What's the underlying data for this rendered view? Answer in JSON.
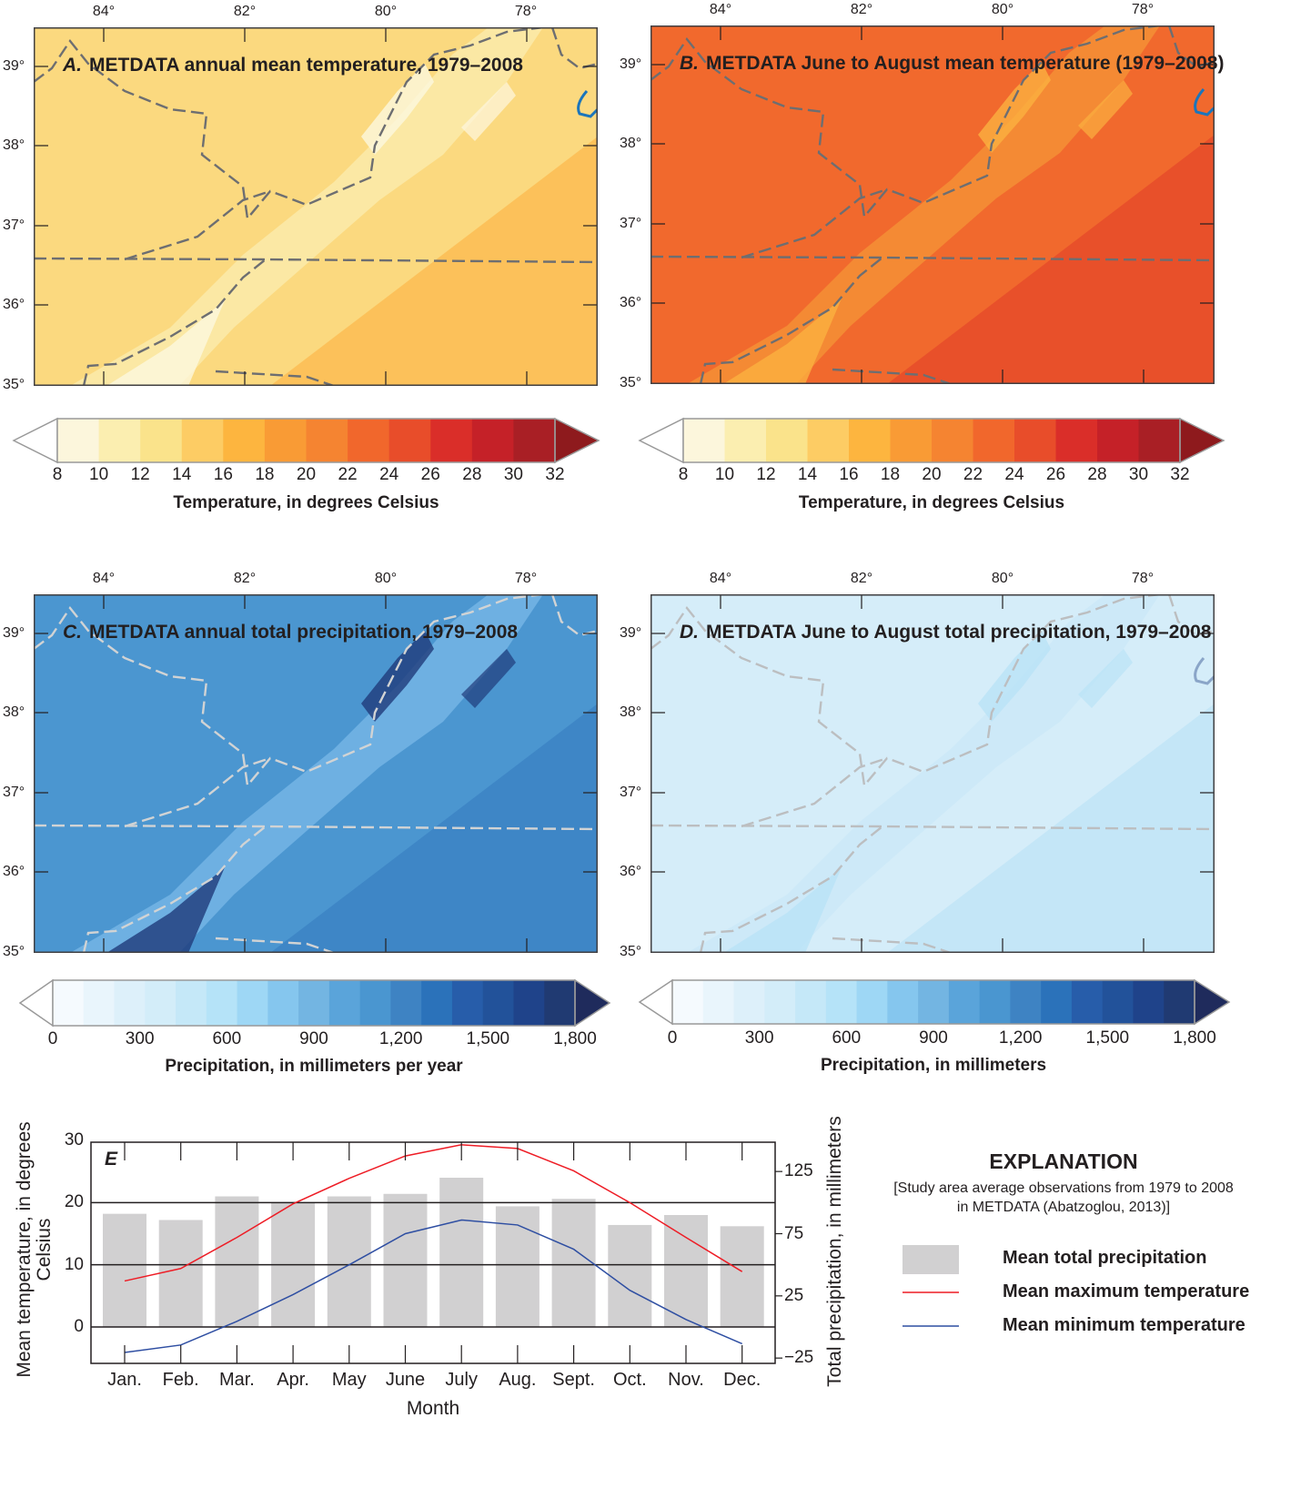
{
  "maps": [
    {
      "letter": "A.",
      "title": "METDATA annual mean temperature, 1979–2008",
      "palette": {
        "base": "#fbd97f",
        "ridge": "#fbe8a4",
        "peak": "#fdf7df",
        "low": "#fcc15a"
      }
    },
    {
      "letter": "B.",
      "title": "METDATA June to August mean temperature (1979–2008)",
      "palette": {
        "base": "#f1692d",
        "ridge": "#f48a34",
        "peak": "#fbb040",
        "low": "#e8502a"
      }
    },
    {
      "letter": "C.",
      "title": "METDATA annual total precipitation, 1979–2008",
      "palette": {
        "base": "#4b96d0",
        "ridge": "#6eb0e2",
        "peak": "#1f3b7a",
        "low": "#3e86c6"
      }
    },
    {
      "letter": "D.",
      "title": "METDATA June to August total precipitation, 1979–2008",
      "palette": {
        "base": "#d5edf9",
        "ridge": "#cde9f8",
        "peak": "#b9e2f6",
        "low": "#c4e6f7"
      }
    }
  ],
  "lon_labels": [
    "84°",
    "82°",
    "80°",
    "78°"
  ],
  "lat_labels": [
    "39°",
    "38°",
    "37°",
    "36°",
    "35°"
  ],
  "temp_colorbar": {
    "ticks": [
      "8",
      "10",
      "12",
      "14",
      "16",
      "18",
      "20",
      "22",
      "24",
      "26",
      "28",
      "30",
      "32"
    ],
    "title": "Temperature, in degrees Celsius",
    "colors": [
      "#fcf6dc",
      "#fbeeb0",
      "#fae38b",
      "#fdcc64",
      "#fdb53f",
      "#f99b35",
      "#f58431",
      "#f1672c",
      "#e84d2a",
      "#da2e29",
      "#c52128",
      "#a91f25",
      "#8e1a1d"
    ]
  },
  "precip_colorbars": [
    {
      "title": "Precipitation, in millimeters per year"
    },
    {
      "title": "Precipitation, in millimeters"
    }
  ],
  "precip_colorbar": {
    "ticks": [
      "0",
      "300",
      "600",
      "900",
      "1,200",
      "1,500",
      "1,800"
    ],
    "colors": [
      "#f5fafe",
      "#e9f5fc",
      "#ddf0fa",
      "#d3edf9",
      "#c5e8f8",
      "#b5e3f8",
      "#9ed7f5",
      "#85c6ee",
      "#73b5e2",
      "#5aa4da",
      "#4a96d0",
      "#3e83c3",
      "#2b72ba",
      "#275daa",
      "#22529a",
      "#1f438a",
      "#203a72",
      "#1f2b5c"
    ]
  },
  "chart_data": {
    "type": "bar",
    "panel_label": "E",
    "categories": [
      "Jan.",
      "Feb.",
      "Mar.",
      "Apr.",
      "May",
      "June",
      "July",
      "Aug.",
      "Sept.",
      "Oct.",
      "Nov.",
      "Dec."
    ],
    "xlabel": "Month",
    "ylabel_left": "Mean temperature, in degrees Celsius",
    "ylabel_right": "Total precipitation, in millimeters",
    "ylim_left": [
      -5,
      30
    ],
    "yticks_left": [
      "0",
      "10",
      "20",
      "30"
    ],
    "ylim_right": [
      -25,
      150
    ],
    "yticks_right": [
      "−25",
      "25",
      "75",
      "125"
    ],
    "grid": "horizontal at 0, 10, 20",
    "series": [
      {
        "name": "Mean total precipitation",
        "type": "bar",
        "axis": "right",
        "color": "#d1d0d1",
        "values": [
          91,
          86,
          105,
          100,
          105,
          107,
          120,
          97,
          103,
          82,
          90,
          81
        ]
      },
      {
        "name": "Mean maximum temperature",
        "type": "line",
        "axis": "left",
        "color": "#ee1c25",
        "values": [
          7.4,
          9.4,
          14.4,
          19.8,
          23.9,
          27.5,
          29.3,
          28.7,
          25.1,
          20,
          14.4,
          8.9
        ]
      },
      {
        "name": "Mean minimum temperature",
        "type": "line",
        "axis": "left",
        "color": "#2e4ea2",
        "values": [
          -4.1,
          -2.9,
          0.9,
          5.2,
          10,
          15,
          17.2,
          16.4,
          12.5,
          5.9,
          1.2,
          -2.7
        ]
      }
    ],
    "legend": {
      "title": "EXPLANATION",
      "note_line1": "[Study area average observations from 1979 to 2008",
      "note_line2": "in METDATA (Abatzoglou, 2013)]",
      "placement": "right"
    }
  }
}
